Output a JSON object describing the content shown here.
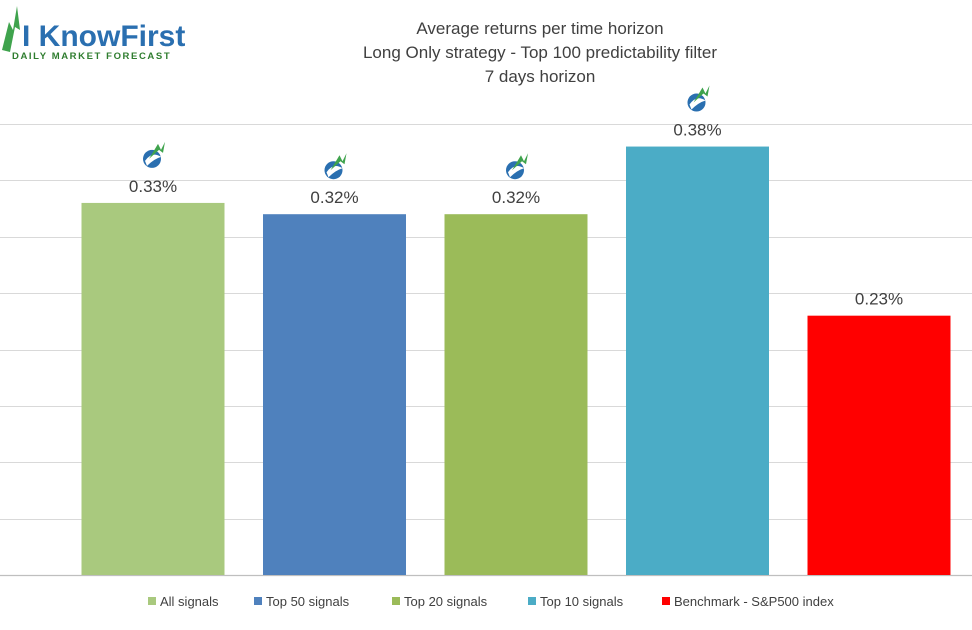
{
  "logo": {
    "name": "I KnowFirst",
    "tagline": "Daily Market Forecast"
  },
  "chart_data": {
    "type": "bar",
    "title_lines": [
      "Average returns per time horizon",
      "Long Only strategy - Top 100 predictability filter",
      "7 days horizon"
    ],
    "categories": [
      "All signals",
      "Top 50 signals",
      "Top 20 signals",
      "Top 10 signals",
      "Benchmark - S&P500 index"
    ],
    "values": [
      0.33,
      0.32,
      0.32,
      0.38,
      0.23
    ],
    "value_labels": [
      "0.33%",
      "0.32%",
      "0.32%",
      "0.38%",
      "0.23%"
    ],
    "colors": [
      "#a9c97e",
      "#4f81bd",
      "#9bbb59",
      "#4bacc6",
      "#ff0000"
    ],
    "icon_markers": [
      true,
      true,
      true,
      true,
      false
    ],
    "ylim": [
      0,
      0.4
    ],
    "gridline_step": 0.05,
    "xlabel": "",
    "ylabel": "",
    "legend_position": "bottom",
    "grid": true
  }
}
